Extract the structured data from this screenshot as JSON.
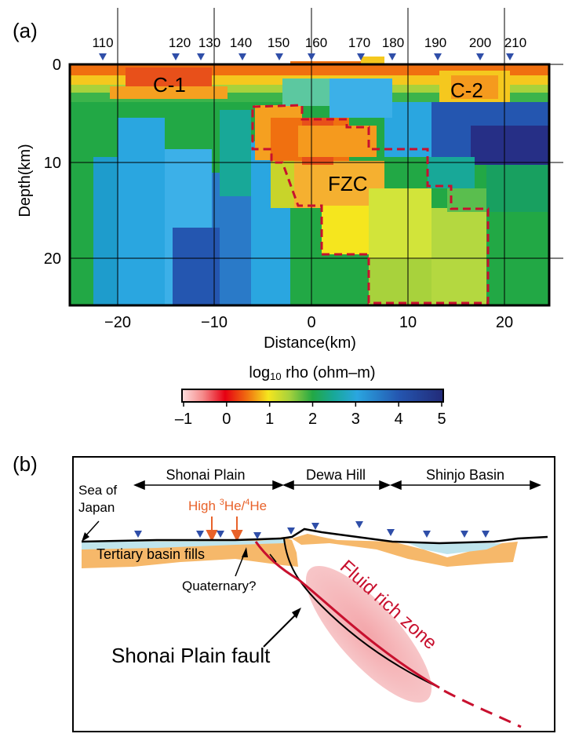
{
  "panel_a": {
    "label": "(a)",
    "station_labels": [
      "110",
      "120",
      "130",
      "140",
      "150",
      "160",
      "170",
      "180",
      "190",
      "200",
      "210"
    ],
    "depth_ticks": [
      "0",
      "10",
      "20"
    ],
    "distance_ticks": [
      "−20",
      "−10",
      "0",
      "10",
      "20"
    ],
    "ylabel": "Depth(km)",
    "xlabel": "Distance(km)",
    "region_labels": {
      "c1": "C-1",
      "c2": "C-2",
      "fzc": "FZC"
    },
    "colorbar": {
      "title": "log10 rho (ohm–m)",
      "title_main": "log",
      "title_sub": "10",
      "title_rest": " rho (ohm–m)",
      "ticks": [
        "–1",
        "0",
        "1",
        "2",
        "3",
        "4",
        "5"
      ]
    }
  },
  "panel_b": {
    "label": "(b)",
    "regions": {
      "shonai_plain": "Shonai Plain",
      "dewa_hill": "Dewa Hill",
      "shinjo_basin": "Shinjo Basin"
    },
    "sea_of_japan_line1": "Sea of",
    "sea_of_japan_line2": "Japan",
    "high_he": {
      "pre": "High ",
      "sup3": "3",
      "mid": "He/",
      "sup4": "4",
      "post": "He"
    },
    "tertiary": "Tertiary basin fills",
    "quaternary": "Quaternary?",
    "fault": "Shonai Plain fault",
    "fluid": "Fluid rich zone"
  },
  "colors": {
    "fault_red": "#c8102e",
    "he_orange": "#e8622a",
    "basin_fill": "#f6b86a",
    "station_blue": "#2f4ea8"
  }
}
